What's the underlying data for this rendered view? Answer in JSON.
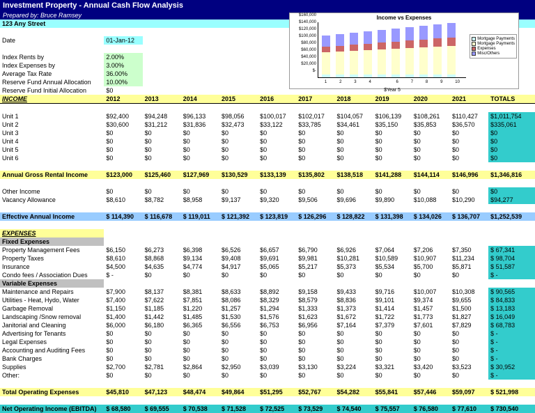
{
  "title": "Investment Property - Annual Cash Flow Analysis",
  "prepared": "Prepared by: Bruce Ramsey",
  "address": "123 Any Street",
  "date_label": "Date",
  "date_val": "01-Jan-12",
  "assumptions": [
    {
      "l": "Index Rents by",
      "v": "2.00%",
      "cls": "green"
    },
    {
      "l": "Index Expenses by",
      "v": "3.00%",
      "cls": "green"
    },
    {
      "l": "Average Tax Rate",
      "v": "36.00%",
      "cls": "green"
    },
    {
      "l": "Reserve Fund Annual Allocation",
      "v": "10.00%",
      "cls": "green"
    },
    {
      "l": "Reserve Fund Initial Allocation",
      "v": "$0",
      "cls": ""
    }
  ],
  "years": [
    "2012",
    "2013",
    "2014",
    "2015",
    "2016",
    "2017",
    "2018",
    "2019",
    "2020",
    "2021"
  ],
  "totals_h": "TOTALS",
  "income_h": "INCOME",
  "units": [
    {
      "l": "Unit 1",
      "v": [
        "$92,400",
        "$94,248",
        "$96,133",
        "$98,056",
        "$100,017",
        "$102,017",
        "$104,057",
        "$106,139",
        "$108,261",
        "$110,427"
      ],
      "t": "$1,011,754"
    },
    {
      "l": "Unit 2",
      "v": [
        "$30,600",
        "$31,212",
        "$31,836",
        "$32,473",
        "$33,122",
        "$33,785",
        "$34,461",
        "$35,150",
        "$35,853",
        "$36,570"
      ],
      "t": "$335,061"
    },
    {
      "l": "Unit 3",
      "v": [
        "$0",
        "$0",
        "$0",
        "$0",
        "$0",
        "$0",
        "$0",
        "$0",
        "$0",
        "$0"
      ],
      "t": "$0"
    },
    {
      "l": "Unit 4",
      "v": [
        "$0",
        "$0",
        "$0",
        "$0",
        "$0",
        "$0",
        "$0",
        "$0",
        "$0",
        "$0"
      ],
      "t": "$0"
    },
    {
      "l": "Unit 5",
      "v": [
        "$0",
        "$0",
        "$0",
        "$0",
        "$0",
        "$0",
        "$0",
        "$0",
        "$0",
        "$0"
      ],
      "t": "$0"
    },
    {
      "l": "Unit 6",
      "v": [
        "$0",
        "$0",
        "$0",
        "$0",
        "$0",
        "$0",
        "$0",
        "$0",
        "$0",
        "$0"
      ],
      "t": "$0"
    }
  ],
  "agi": {
    "l": "Annual Gross Rental Income",
    "v": [
      "$123,000",
      "$125,460",
      "$127,969",
      "$130,529",
      "$133,139",
      "$135,802",
      "$138,518",
      "$141,288",
      "$144,114",
      "$146,996"
    ],
    "t": "$1,346,816"
  },
  "other_inc": {
    "l": "Other Income",
    "v": [
      "$0",
      "$0",
      "$0",
      "$0",
      "$0",
      "$0",
      "$0",
      "$0",
      "$0",
      "$0"
    ],
    "t": "$0"
  },
  "vacancy": {
    "l": "Vacancy Allowance",
    "v": [
      "$8,610",
      "$8,782",
      "$8,958",
      "$9,137",
      "$9,320",
      "$9,506",
      "$9,696",
      "$9,890",
      "$10,088",
      "$10,290"
    ],
    "t": "$94,277"
  },
  "eai": {
    "l": "Effective Annual Income",
    "v": [
      "$  114,390",
      "$  116,678",
      "$  119,011",
      "$  121,392",
      "$  123,819",
      "$  126,296",
      "$  128,822",
      "$  131,398",
      "$  134,026",
      "$  136,707"
    ],
    "t": "$1,252,539"
  },
  "exp_h": "EXPENSES",
  "fixed_h": "Fixed Expenses",
  "fixed": [
    {
      "l": "Property Management Fees",
      "v": [
        "$6,150",
        "$6,273",
        "$6,398",
        "$6,526",
        "$6,657",
        "$6,790",
        "$6,926",
        "$7,064",
        "$7,206",
        "$7,350"
      ],
      "t": "67,341"
    },
    {
      "l": "Property Taxes",
      "v": [
        "$8,610",
        "$8,868",
        "$9,134",
        "$9,408",
        "$9,691",
        "$9,981",
        "$10,281",
        "$10,589",
        "$10,907",
        "$11,234"
      ],
      "t": "98,704"
    },
    {
      "l": "Insurance",
      "v": [
        "$4,500",
        "$4,635",
        "$4,774",
        "$4,917",
        "$5,065",
        "$5,217",
        "$5,373",
        "$5,534",
        "$5,700",
        "$5,871"
      ],
      "t": "51,587"
    },
    {
      "l": "Condo fees / Association Dues",
      "v": [
        "$          -",
        "$0",
        "$0",
        "$0",
        "$0",
        "$0",
        "$0",
        "$0",
        "$0",
        "$0"
      ],
      "t": "-"
    }
  ],
  "var_h": "Variable Expenses",
  "variable": [
    {
      "l": "Maintenance and Repairs",
      "v": [
        "$7,900",
        "$8,137",
        "$8,381",
        "$8,633",
        "$8,892",
        "$9,158",
        "$9,433",
        "$9,716",
        "$10,007",
        "$10,308"
      ],
      "t": "90,565"
    },
    {
      "l": "Utilities - Heat, Hydo, Water",
      "v": [
        "$7,400",
        "$7,622",
        "$7,851",
        "$8,086",
        "$8,329",
        "$8,579",
        "$8,836",
        "$9,101",
        "$9,374",
        "$9,655"
      ],
      "t": "84,833"
    },
    {
      "l": "Garbage Removal",
      "v": [
        "$1,150",
        "$1,185",
        "$1,220",
        "$1,257",
        "$1,294",
        "$1,333",
        "$1,373",
        "$1,414",
        "$1,457",
        "$1,500"
      ],
      "t": "13,183"
    },
    {
      "l": "Landscaping /Snow removal",
      "v": [
        "$1,400",
        "$1,442",
        "$1,485",
        "$1,530",
        "$1,576",
        "$1,623",
        "$1,672",
        "$1,722",
        "$1,773",
        "$1,827"
      ],
      "t": "16,049"
    },
    {
      "l": "Janitorial and Cleaning",
      "v": [
        "$6,000",
        "$6,180",
        "$6,365",
        "$6,556",
        "$6,753",
        "$6,956",
        "$7,164",
        "$7,379",
        "$7,601",
        "$7,829"
      ],
      "t": "68,783"
    },
    {
      "l": "Advertising for Tenants",
      "v": [
        "$0",
        "$0",
        "$0",
        "$0",
        "$0",
        "$0",
        "$0",
        "$0",
        "$0",
        "$0"
      ],
      "t": "-"
    },
    {
      "l": "Legal Expenses",
      "v": [
        "$0",
        "$0",
        "$0",
        "$0",
        "$0",
        "$0",
        "$0",
        "$0",
        "$0",
        "$0"
      ],
      "t": "-"
    },
    {
      "l": "Accounting and Auditing Fees",
      "v": [
        "$0",
        "$0",
        "$0",
        "$0",
        "$0",
        "$0",
        "$0",
        "$0",
        "$0",
        "$0"
      ],
      "t": "-"
    },
    {
      "l": "Bank Charges",
      "v": [
        "$0",
        "$0",
        "$0",
        "$0",
        "$0",
        "$0",
        "$0",
        "$0",
        "$0",
        "$0"
      ],
      "t": "-"
    },
    {
      "l": "Supplies",
      "v": [
        "$2,700",
        "$2,781",
        "$2,864",
        "$2,950",
        "$3,039",
        "$3,130",
        "$3,224",
        "$3,321",
        "$3,420",
        "$3,523"
      ],
      "t": "30,952"
    },
    {
      "l": "Other:",
      "v": [
        "$0",
        "$0",
        "$0",
        "$0",
        "$0",
        "$0",
        "$0",
        "$0",
        "$0",
        "$0"
      ],
      "t": "-"
    }
  ],
  "toe": {
    "l": "Total Operating Expenses",
    "v": [
      "$45,810",
      "$47,123",
      "$48,474",
      "$49,864",
      "$51,295",
      "$52,767",
      "$54,282",
      "$55,841",
      "$57,446",
      "$59,097"
    ],
    "t": "521,998"
  },
  "noi": {
    "l": "Net Operating Income (EBITDA)",
    "v": [
      "$   68,580",
      "$   69,555",
      "$    70,538",
      "$   71,528",
      "$   72,525",
      "$    73,529",
      "$    74,540",
      "$    75,557",
      "$    76,580",
      "$    77,610"
    ],
    "t": "730,540"
  },
  "chart": {
    "title": "Income vs Expenses",
    "x_label": "$Year 5",
    "y_ticks": [
      "$160,000",
      "$140,000",
      "$120,000",
      "$100,000",
      "$80,000",
      "$60,000",
      "$40,000",
      "$20,000",
      "$-"
    ],
    "x_ticks": [
      "1",
      "2",
      "3",
      "4",
      "",
      "6",
      "7",
      "8",
      "9",
      "10"
    ],
    "legend": [
      "Mortgage Payments",
      "Mortgage Payments",
      "Expenses",
      "Misc/Others"
    ],
    "colors": {
      "teal": "#ccffff",
      "cream": "#ffffcc",
      "red": "#cc6666",
      "blue": "#9999ff"
    },
    "bars": [
      {
        "blue": 16,
        "red": 8,
        "cream": 32,
        "teal": 4
      },
      {
        "blue": 17,
        "red": 8,
        "cream": 33,
        "teal": 4
      },
      {
        "blue": 17,
        "red": 9,
        "cream": 34,
        "teal": 4
      },
      {
        "blue": 18,
        "red": 9,
        "cream": 35,
        "teal": 4
      },
      {
        "blue": 18,
        "red": 10,
        "cream": 36,
        "teal": 4
      },
      {
        "blue": 19,
        "red": 10,
        "cream": 37,
        "teal": 4
      },
      {
        "blue": 19,
        "red": 11,
        "cream": 38,
        "teal": 4
      },
      {
        "blue": 20,
        "red": 11,
        "cream": 39,
        "teal": 4
      },
      {
        "blue": 20,
        "red": 12,
        "cream": 40,
        "teal": 4
      },
      {
        "blue": 21,
        "red": 12,
        "cream": 41,
        "teal": 4
      }
    ]
  }
}
